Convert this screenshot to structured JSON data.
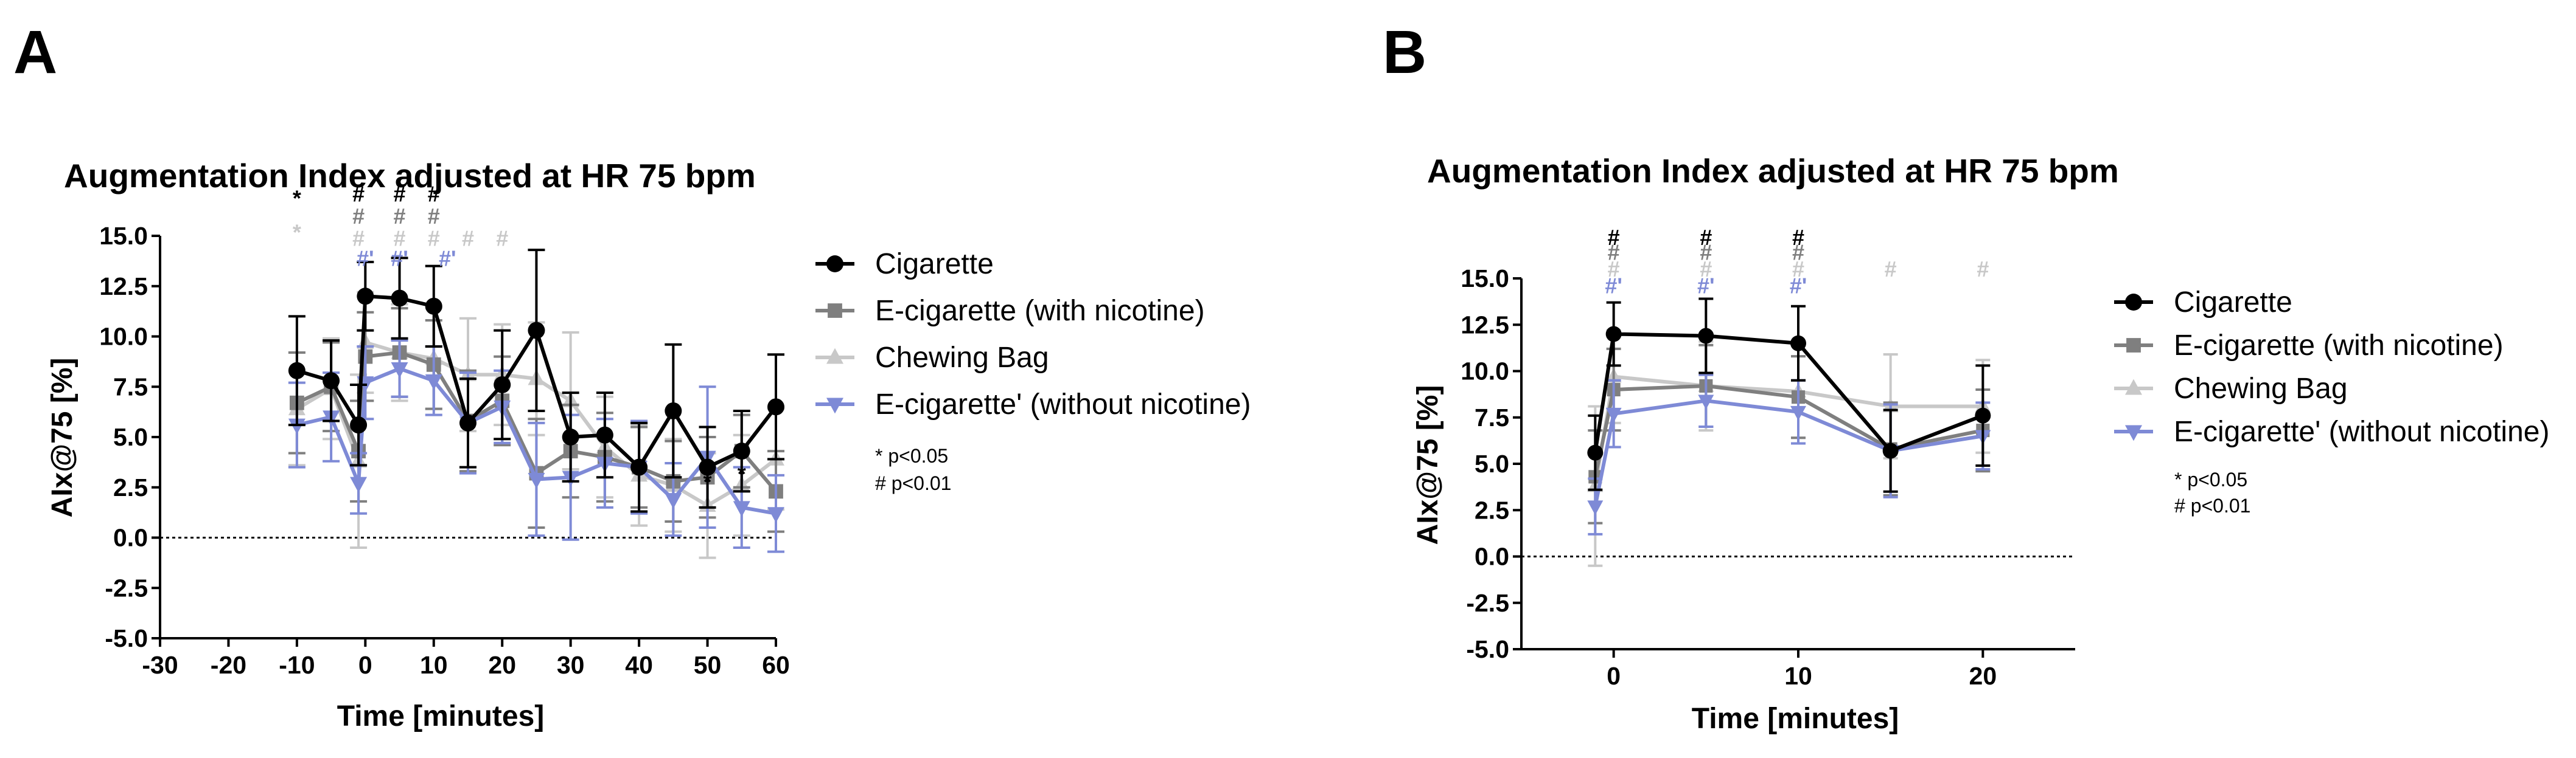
{
  "panels": [
    {
      "label": "A",
      "title": "Augmentation Index adjusted at HR 75 bpm",
      "xlabel": "Time [minutes]",
      "ylabel": "AIx@75 [%]",
      "notes": [
        "* p<0.05",
        "# p<0.01"
      ]
    },
    {
      "label": "B",
      "title": "Augmentation Index adjusted at HR 75 bpm",
      "xlabel": "Time [minutes]",
      "ylabel": "AIx@75 [%]",
      "notes": [
        "* p<0.05",
        "# p<0.01"
      ]
    }
  ],
  "chart_data": [
    {
      "type": "line",
      "panel": "A",
      "title": "Augmentation Index adjusted at HR 75 bpm",
      "xlabel": "Time [minutes]",
      "ylabel": "AIx@75 [%]",
      "xlim": [
        -30,
        60
      ],
      "ylim": [
        -5,
        15
      ],
      "x_ticks": [
        -30,
        -20,
        -10,
        0,
        10,
        20,
        30,
        40,
        50,
        60
      ],
      "y_ticks": [
        -5,
        -2.5,
        0,
        2.5,
        5,
        7.5,
        10,
        12.5,
        15
      ],
      "y_tick_labels": [
        "-5.0",
        "-2.5",
        "0.0",
        "2.5",
        "5.0",
        "7.5",
        "10.0",
        "12.5",
        "15.0"
      ],
      "reference_line": 0,
      "legend_position": "right",
      "series": [
        {
          "name": "Cigarette",
          "color": "#000000",
          "marker": "circle",
          "points": [
            {
              "x": -10,
              "y": 8.3,
              "err": 2.7
            },
            {
              "x": -5,
              "y": 7.8,
              "err": 2.0
            },
            {
              "x": -1,
              "y": 5.6,
              "err": 2.0
            },
            {
              "x": 0,
              "y": 12.0,
              "err": 1.7
            },
            {
              "x": 5,
              "y": 11.9,
              "err": 2.0
            },
            {
              "x": 10,
              "y": 11.5,
              "err": 2.0
            },
            {
              "x": 15,
              "y": 5.7,
              "err": 2.2
            },
            {
              "x": 20,
              "y": 7.6,
              "err": 2.7
            },
            {
              "x": 25,
              "y": 10.3,
              "err": 4.0
            },
            {
              "x": 30,
              "y": 5.0,
              "err": 2.2
            },
            {
              "x": 35,
              "y": 5.1,
              "err": 2.1
            },
            {
              "x": 40,
              "y": 3.5,
              "err": 2.2
            },
            {
              "x": 45,
              "y": 6.3,
              "err": 3.3
            },
            {
              "x": 50,
              "y": 3.5,
              "err": 2.0
            },
            {
              "x": 55,
              "y": 4.3,
              "err": 2.0
            },
            {
              "x": 60,
              "y": 6.5,
              "err": 2.6
            }
          ]
        },
        {
          "name": "E-cigarette (with nicotine)",
          "color": "#7f7f7f",
          "marker": "square",
          "points": [
            {
              "x": -10,
              "y": 6.7,
              "err": 2.5
            },
            {
              "x": -5,
              "y": 7.5,
              "err": 2.2
            },
            {
              "x": -1,
              "y": 4.3,
              "err": 2.5
            },
            {
              "x": 0,
              "y": 9.0,
              "err": 2.2
            },
            {
              "x": 5,
              "y": 9.2,
              "err": 2.2
            },
            {
              "x": 10,
              "y": 8.6,
              "err": 2.2
            },
            {
              "x": 15,
              "y": 5.8,
              "err": 2.5
            },
            {
              "x": 20,
              "y": 6.8,
              "err": 2.2
            },
            {
              "x": 25,
              "y": 3.2,
              "err": 2.7
            },
            {
              "x": 30,
              "y": 4.3,
              "err": 2.3
            },
            {
              "x": 35,
              "y": 4.0,
              "err": 2.2
            },
            {
              "x": 40,
              "y": 3.5,
              "err": 2.0
            },
            {
              "x": 45,
              "y": 2.8,
              "err": 2.0
            },
            {
              "x": 50,
              "y": 3.0,
              "err": 2.0
            },
            {
              "x": 55,
              "y": 4.3,
              "err": 1.8
            },
            {
              "x": 60,
              "y": 2.3,
              "err": 2.0
            }
          ]
        },
        {
          "name": "Chewing Bag",
          "color": "#c8c8c8",
          "marker": "triangle-up",
          "points": [
            {
              "x": -10,
              "y": 6.4,
              "err": 2.8
            },
            {
              "x": -5,
              "y": 7.4,
              "err": 2.5
            },
            {
              "x": -1,
              "y": 3.8,
              "err": 4.3
            },
            {
              "x": 0,
              "y": 9.7,
              "err": 2.5
            },
            {
              "x": 5,
              "y": 9.2,
              "err": 2.4
            },
            {
              "x": 10,
              "y": 8.9,
              "err": 2.5
            },
            {
              "x": 15,
              "y": 8.1,
              "err": 2.8
            },
            {
              "x": 20,
              "y": 8.1,
              "err": 2.5
            },
            {
              "x": 25,
              "y": 7.9,
              "err": 2.8
            },
            {
              "x": 30,
              "y": 6.8,
              "err": 3.4
            },
            {
              "x": 35,
              "y": 4.5,
              "err": 2.5
            },
            {
              "x": 40,
              "y": 3.1,
              "err": 2.5
            },
            {
              "x": 45,
              "y": 2.6,
              "err": 2.3
            },
            {
              "x": 50,
              "y": 1.6,
              "err": 2.6
            },
            {
              "x": 55,
              "y": 2.6,
              "err": 2.5
            },
            {
              "x": 60,
              "y": 3.9,
              "err": 2.5
            }
          ]
        },
        {
          "name": "E-cigarette' (without nicotine)",
          "color": "#7e8ad6",
          "marker": "triangle-down",
          "points": [
            {
              "x": -10,
              "y": 5.6,
              "err": 2.1
            },
            {
              "x": -5,
              "y": 6.0,
              "err": 2.2
            },
            {
              "x": -1,
              "y": 2.7,
              "err": 1.5
            },
            {
              "x": 0,
              "y": 7.7,
              "err": 1.8
            },
            {
              "x": 5,
              "y": 8.4,
              "err": 1.4
            },
            {
              "x": 10,
              "y": 7.8,
              "err": 1.7
            },
            {
              "x": 15,
              "y": 5.7,
              "err": 2.5
            },
            {
              "x": 20,
              "y": 6.5,
              "err": 1.8
            },
            {
              "x": 25,
              "y": 2.9,
              "err": 2.8
            },
            {
              "x": 30,
              "y": 3.0,
              "err": 3.1
            },
            {
              "x": 35,
              "y": 3.7,
              "err": 2.2
            },
            {
              "x": 40,
              "y": 3.5,
              "err": 2.3
            },
            {
              "x": 45,
              "y": 1.9,
              "err": 1.8
            },
            {
              "x": 50,
              "y": 4.0,
              "err": 3.5
            },
            {
              "x": 55,
              "y": 1.5,
              "err": 2.0
            },
            {
              "x": 60,
              "y": 1.2,
              "err": 1.9
            }
          ]
        }
      ],
      "annotations": [
        {
          "x": -10,
          "y": 16.5,
          "text": "*",
          "color": "#000000"
        },
        {
          "x": -10,
          "y": 14.8,
          "text": "*",
          "color": "#c8c8c8"
        },
        {
          "x": 50,
          "y": 2.4,
          "text": "*",
          "color": "#000000"
        },
        {
          "x": 55,
          "y": 2.8,
          "text": "*",
          "color": "#000000"
        },
        {
          "x": -1,
          "y": 16.7,
          "text": "#",
          "color": "#000000"
        },
        {
          "x": -1,
          "y": 15.6,
          "text": "#",
          "color": "#7f7f7f"
        },
        {
          "x": -1,
          "y": 14.5,
          "text": "#",
          "color": "#c8c8c8"
        },
        {
          "x": 0,
          "y": 13.5,
          "text": "#'",
          "color": "#7e8ad6"
        },
        {
          "x": 5,
          "y": 16.7,
          "text": "#",
          "color": "#000000"
        },
        {
          "x": 5,
          "y": 15.6,
          "text": "#",
          "color": "#7f7f7f"
        },
        {
          "x": 5,
          "y": 14.5,
          "text": "#",
          "color": "#c8c8c8"
        },
        {
          "x": 5,
          "y": 13.5,
          "text": "#'",
          "color": "#7e8ad6"
        },
        {
          "x": 10,
          "y": 16.7,
          "text": "#",
          "color": "#000000"
        },
        {
          "x": 10,
          "y": 15.6,
          "text": "#",
          "color": "#7f7f7f"
        },
        {
          "x": 10,
          "y": 14.5,
          "text": "#",
          "color": "#c8c8c8"
        },
        {
          "x": 12,
          "y": 13.5,
          "text": "#'",
          "color": "#7e8ad6"
        },
        {
          "x": 15,
          "y": 14.5,
          "text": "#",
          "color": "#c8c8c8"
        },
        {
          "x": 20,
          "y": 14.5,
          "text": "#",
          "color": "#c8c8c8"
        }
      ]
    },
    {
      "type": "line",
      "panel": "B",
      "title": "Augmentation Index adjusted at HR 75 bpm",
      "xlabel": "Time [minutes]",
      "ylabel": "AIx@75 [%]",
      "xlim": [
        -5,
        25
      ],
      "ylim": [
        -5,
        15
      ],
      "x_ticks": [
        0,
        10,
        20
      ],
      "y_ticks": [
        -5,
        -2.5,
        0,
        2.5,
        5,
        7.5,
        10,
        12.5,
        15
      ],
      "y_tick_labels": [
        "-5.0",
        "-2.5",
        "0.0",
        "2.5",
        "5.0",
        "7.5",
        "10.0",
        "12.5",
        "15.0"
      ],
      "reference_line": 0,
      "legend_position": "right",
      "series": [
        {
          "name": "Cigarette",
          "color": "#000000",
          "marker": "circle",
          "points": [
            {
              "x": -1,
              "y": 5.6,
              "err": 2.0
            },
            {
              "x": 0,
              "y": 12.0,
              "err": 1.7
            },
            {
              "x": 5,
              "y": 11.9,
              "err": 2.0
            },
            {
              "x": 10,
              "y": 11.5,
              "err": 2.0
            },
            {
              "x": 15,
              "y": 5.7,
              "err": 2.2
            },
            {
              "x": 20,
              "y": 7.6,
              "err": 2.7
            }
          ]
        },
        {
          "name": "E-cigarette (with nicotine)",
          "color": "#7f7f7f",
          "marker": "square",
          "points": [
            {
              "x": -1,
              "y": 4.3,
              "err": 2.5
            },
            {
              "x": 0,
              "y": 9.0,
              "err": 2.2
            },
            {
              "x": 5,
              "y": 9.2,
              "err": 2.2
            },
            {
              "x": 10,
              "y": 8.6,
              "err": 2.2
            },
            {
              "x": 15,
              "y": 5.8,
              "err": 2.5
            },
            {
              "x": 20,
              "y": 6.8,
              "err": 2.2
            }
          ]
        },
        {
          "name": "Chewing Bag",
          "color": "#c8c8c8",
          "marker": "triangle-up",
          "points": [
            {
              "x": -1,
              "y": 3.8,
              "err": 4.3
            },
            {
              "x": 0,
              "y": 9.7,
              "err": 2.5
            },
            {
              "x": 5,
              "y": 9.2,
              "err": 2.4
            },
            {
              "x": 10,
              "y": 8.9,
              "err": 2.5
            },
            {
              "x": 15,
              "y": 8.1,
              "err": 2.8
            },
            {
              "x": 20,
              "y": 8.1,
              "err": 2.5
            }
          ]
        },
        {
          "name": "E-cigarette' (without nicotine)",
          "color": "#7e8ad6",
          "marker": "triangle-down",
          "points": [
            {
              "x": -1,
              "y": 2.7,
              "err": 1.5
            },
            {
              "x": 0,
              "y": 7.7,
              "err": 1.8
            },
            {
              "x": 5,
              "y": 8.4,
              "err": 1.4
            },
            {
              "x": 10,
              "y": 7.8,
              "err": 1.7
            },
            {
              "x": 15,
              "y": 5.7,
              "err": 2.5
            },
            {
              "x": 20,
              "y": 6.5,
              "err": 1.8
            }
          ]
        }
      ],
      "annotations": [
        {
          "x": 0,
          "y": 16.8,
          "text": "#",
          "color": "#000000"
        },
        {
          "x": 0,
          "y": 16.0,
          "text": "#",
          "color": "#7f7f7f"
        },
        {
          "x": 0,
          "y": 15.1,
          "text": "#",
          "color": "#c8c8c8"
        },
        {
          "x": 0,
          "y": 14.2,
          "text": "#'",
          "color": "#7e8ad6"
        },
        {
          "x": 5,
          "y": 16.8,
          "text": "#",
          "color": "#000000"
        },
        {
          "x": 5,
          "y": 16.0,
          "text": "#",
          "color": "#7f7f7f"
        },
        {
          "x": 5,
          "y": 15.1,
          "text": "#",
          "color": "#c8c8c8"
        },
        {
          "x": 5,
          "y": 14.2,
          "text": "#'",
          "color": "#7e8ad6"
        },
        {
          "x": 10,
          "y": 16.8,
          "text": "#",
          "color": "#000000"
        },
        {
          "x": 10,
          "y": 16.0,
          "text": "#",
          "color": "#7f7f7f"
        },
        {
          "x": 10,
          "y": 15.1,
          "text": "#",
          "color": "#c8c8c8"
        },
        {
          "x": 10,
          "y": 14.2,
          "text": "#'",
          "color": "#7e8ad6"
        },
        {
          "x": 15,
          "y": 15.1,
          "text": "#",
          "color": "#c8c8c8"
        },
        {
          "x": 20,
          "y": 15.1,
          "text": "#",
          "color": "#c8c8c8"
        }
      ]
    }
  ]
}
